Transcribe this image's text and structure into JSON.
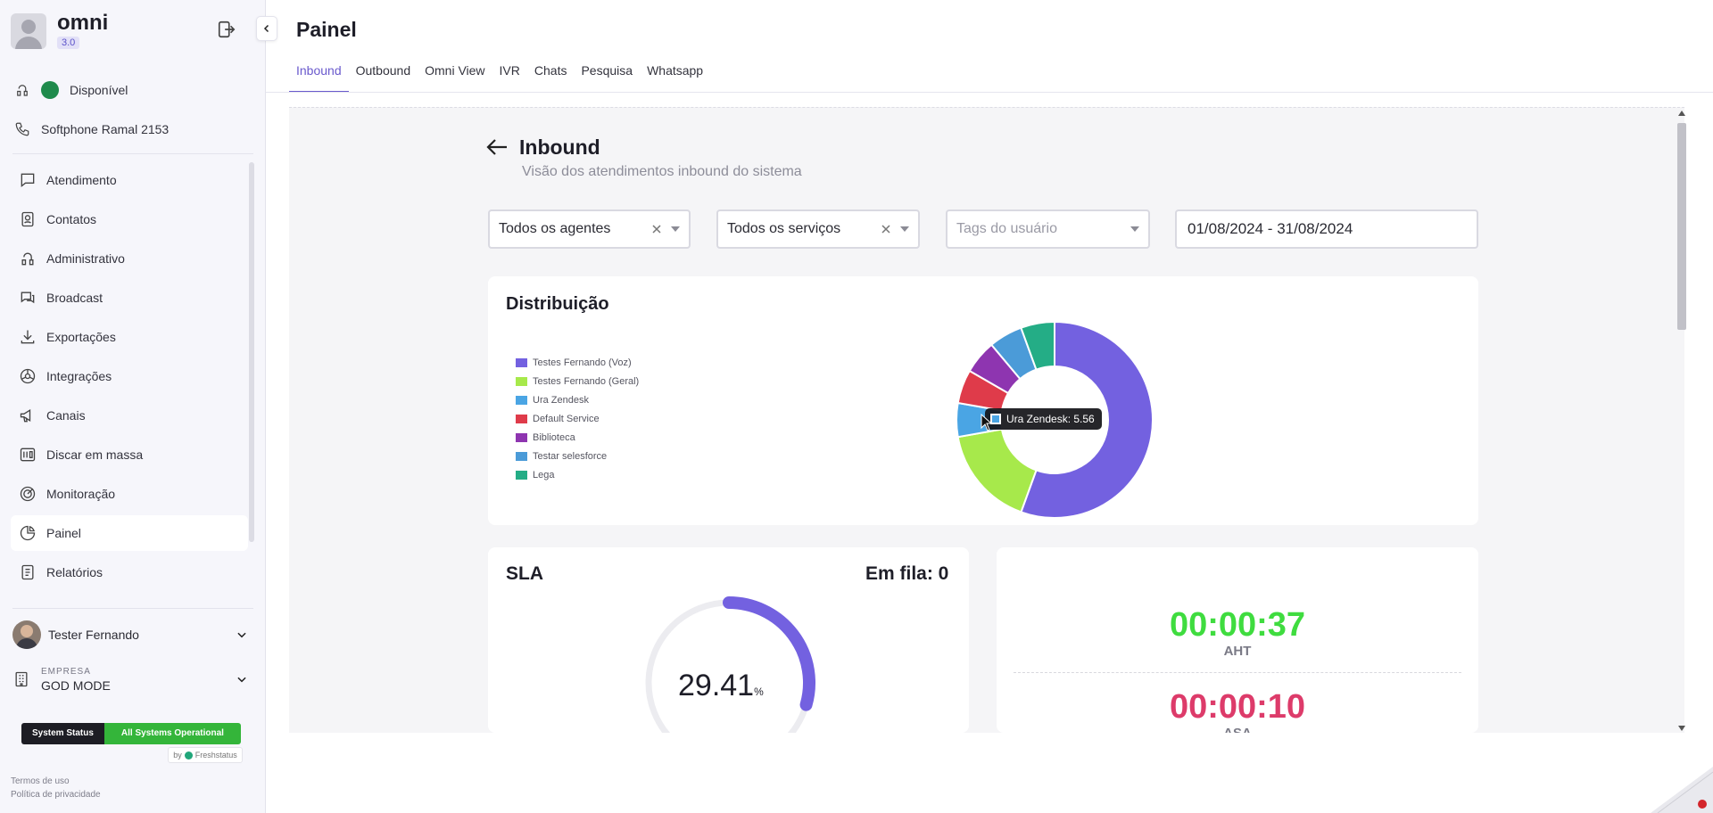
{
  "app": {
    "name": "omni",
    "version": "3.0"
  },
  "presence": {
    "status": "Disponível",
    "softphone": "Softphone Ramal 2153"
  },
  "menu": [
    {
      "label": "Atendimento",
      "icon": "chat-icon"
    },
    {
      "label": "Contatos",
      "icon": "contacts-icon"
    },
    {
      "label": "Administrativo",
      "icon": "admin-icon"
    },
    {
      "label": "Broadcast",
      "icon": "broadcast-icon"
    },
    {
      "label": "Exportações",
      "icon": "download-icon"
    },
    {
      "label": "Integrações",
      "icon": "integrations-icon"
    },
    {
      "label": "Canais",
      "icon": "megaphone-icon"
    },
    {
      "label": "Discar em massa",
      "icon": "bulk-dial-icon"
    },
    {
      "label": "Monitoração",
      "icon": "monitor-icon"
    },
    {
      "label": "Painel",
      "icon": "pie-chart-icon"
    },
    {
      "label": "Relatórios",
      "icon": "report-icon"
    }
  ],
  "user": {
    "name": "Tester Fernando"
  },
  "company": {
    "label": "EMPRESA",
    "name": "GOD MODE"
  },
  "system_status": {
    "label": "System Status",
    "value": "All Systems Operational",
    "provider_by": "by",
    "provider": "Freshstatus"
  },
  "legal": {
    "terms": "Termos de uso",
    "privacy": "Política de privacidade"
  },
  "header": {
    "title": "Painel"
  },
  "tabs": [
    "Inbound",
    "Outbound",
    "Omni View",
    "IVR",
    "Chats",
    "Pesquisa",
    "Whatsapp"
  ],
  "page": {
    "title": "Inbound",
    "subtitle": "Visão dos atendimentos inbound do sistema"
  },
  "filters": {
    "agents": "Todos os agentes",
    "services": "Todos os serviços",
    "tags_placeholder": "Tags do usuário",
    "date_range": "01/08/2024 - 31/08/2024"
  },
  "distribution": {
    "title": "Distribuição",
    "tooltip": "Ura Zendesk: 5.56"
  },
  "chart_data": {
    "type": "pie",
    "title": "Distribuição",
    "categories": [
      "Testes Fernando (Voz)",
      "Testes Fernando (Geral)",
      "Ura Zendesk",
      "Default Service",
      "Biblioteca",
      "Testar selesforce",
      "Lega"
    ],
    "values": [
      55.56,
      16.67,
      5.56,
      5.56,
      5.56,
      5.56,
      5.56
    ],
    "colors": [
      "#7361e0",
      "#a7e94b",
      "#4aa5e4",
      "#df3b4a",
      "#8e35b0",
      "#4b9bd8",
      "#24ad86"
    ],
    "legend_position": "left",
    "donut": true
  },
  "sla": {
    "title": "SLA",
    "queue": "Em fila: 0",
    "value": "29.41",
    "unit": "%",
    "fraction": 0.2941
  },
  "metrics": {
    "aht_value": "00:00:37",
    "aht_label": "AHT",
    "asa_value": "00:00:10",
    "asa_label": "ASA"
  },
  "colors": {
    "accent": "#6a5acd",
    "aht": "#3fdc3f",
    "asa": "#dd3b6a",
    "status_ok": "#34b53a"
  }
}
